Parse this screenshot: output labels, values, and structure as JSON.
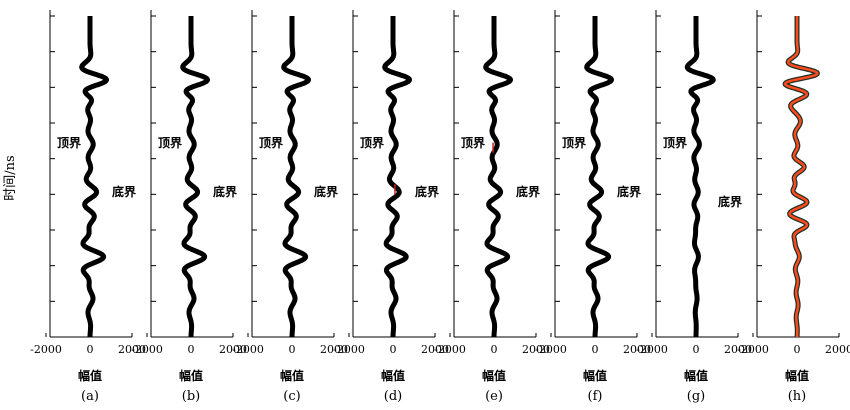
{
  "figure": {
    "ylabel": "时间/ns",
    "tick_labels": [
      "-2000",
      "0",
      "2000"
    ],
    "xlabel": "幅值",
    "top_label": "顶界",
    "bottom_label": "底界"
  },
  "chart_data": [
    {
      "type": "line",
      "panel": "(a)",
      "xlabel": "幅值",
      "xlim": [
        -2000,
        2000
      ],
      "yticks": 10,
      "annotations": [
        "顶界",
        "底界"
      ],
      "events": [
        {
          "y": 0.0,
          "amp": 0.0,
          "sigma": 0.06
        },
        {
          "y": 0.2,
          "amp": 1000,
          "sigma": 0.035
        },
        {
          "y": 0.25,
          "amp": 300,
          "sigma": 0.04
        },
        {
          "y": 0.4,
          "amp": 170,
          "sigma": 0.05
        },
        {
          "y": 0.55,
          "amp": 350,
          "sigma": 0.045
        },
        {
          "y": 0.62,
          "amp": 220,
          "sigma": 0.04
        },
        {
          "y": 0.75,
          "amp": 720,
          "sigma": 0.04
        },
        {
          "y": 0.88,
          "amp": 160,
          "sigma": 0.05
        }
      ],
      "wavelength": 0.095,
      "colors": [
        "#000000"
      ]
    },
    {
      "type": "line",
      "panel": "(b)",
      "xlabel": "幅值",
      "xlim": [
        -2000,
        2000
      ],
      "yticks": 10,
      "annotations": [
        "顶界",
        "底界"
      ],
      "events": [
        {
          "y": 0.2,
          "amp": 1000,
          "sigma": 0.035
        },
        {
          "y": 0.25,
          "amp": 300,
          "sigma": 0.04
        },
        {
          "y": 0.4,
          "amp": 170,
          "sigma": 0.05
        },
        {
          "y": 0.55,
          "amp": 350,
          "sigma": 0.045
        },
        {
          "y": 0.62,
          "amp": 220,
          "sigma": 0.04
        },
        {
          "y": 0.75,
          "amp": 720,
          "sigma": 0.04
        },
        {
          "y": 0.88,
          "amp": 160,
          "sigma": 0.05
        }
      ],
      "wavelength": 0.095,
      "colors": [
        "#000000"
      ]
    },
    {
      "type": "line",
      "panel": "(c)",
      "xlabel": "幅值",
      "xlim": [
        -2000,
        2000
      ],
      "yticks": 10,
      "annotations": [
        "顶界",
        "底界"
      ],
      "events": [
        {
          "y": 0.2,
          "amp": 1000,
          "sigma": 0.035
        },
        {
          "y": 0.25,
          "amp": 300,
          "sigma": 0.04
        },
        {
          "y": 0.4,
          "amp": 170,
          "sigma": 0.05
        },
        {
          "y": 0.55,
          "amp": 350,
          "sigma": 0.045
        },
        {
          "y": 0.62,
          "amp": 220,
          "sigma": 0.04
        },
        {
          "y": 0.75,
          "amp": 720,
          "sigma": 0.04
        },
        {
          "y": 0.88,
          "amp": 160,
          "sigma": 0.05
        }
      ],
      "wavelength": 0.095,
      "colors": [
        "#000000"
      ]
    },
    {
      "type": "line",
      "panel": "(d)",
      "xlabel": "幅值",
      "xlim": [
        -2000,
        2000
      ],
      "yticks": 10,
      "annotations": [
        "顶界",
        "底界"
      ],
      "events": [
        {
          "y": 0.2,
          "amp": 1000,
          "sigma": 0.035
        },
        {
          "y": 0.25,
          "amp": 300,
          "sigma": 0.04
        },
        {
          "y": 0.4,
          "amp": 170,
          "sigma": 0.05
        },
        {
          "y": 0.55,
          "amp": 330,
          "sigma": 0.045
        },
        {
          "y": 0.62,
          "amp": 220,
          "sigma": 0.04
        },
        {
          "y": 0.75,
          "amp": 700,
          "sigma": 0.04
        },
        {
          "y": 0.88,
          "amp": 160,
          "sigma": 0.05
        }
      ],
      "wavelength": 0.095,
      "colors": [
        "#000000"
      ],
      "markers": [
        {
          "x": 100,
          "y": 0.54,
          "color": "#cc2222"
        }
      ]
    },
    {
      "type": "line",
      "panel": "(e)",
      "xlabel": "幅值",
      "xlim": [
        -2000,
        2000
      ],
      "yticks": 10,
      "annotations": [
        "顶界",
        "底界"
      ],
      "events": [
        {
          "y": 0.2,
          "amp": 1000,
          "sigma": 0.035
        },
        {
          "y": 0.25,
          "amp": 300,
          "sigma": 0.04
        },
        {
          "y": 0.4,
          "amp": 170,
          "sigma": 0.05
        },
        {
          "y": 0.55,
          "amp": 350,
          "sigma": 0.045
        },
        {
          "y": 0.62,
          "amp": 220,
          "sigma": 0.04
        },
        {
          "y": 0.75,
          "amp": 720,
          "sigma": 0.04
        },
        {
          "y": 0.88,
          "amp": 160,
          "sigma": 0.05
        }
      ],
      "wavelength": 0.095,
      "colors": [
        "#000000"
      ],
      "markers": [
        {
          "x": -50,
          "y": 0.41,
          "color": "#cc2222"
        }
      ]
    },
    {
      "type": "line",
      "panel": "(f)",
      "xlabel": "幅值",
      "xlim": [
        -2000,
        2000
      ],
      "yticks": 10,
      "annotations": [
        "顶界",
        "底界"
      ],
      "events": [
        {
          "y": 0.2,
          "amp": 1000,
          "sigma": 0.035
        },
        {
          "y": 0.25,
          "amp": 300,
          "sigma": 0.04
        },
        {
          "y": 0.4,
          "amp": 170,
          "sigma": 0.05
        },
        {
          "y": 0.55,
          "amp": 350,
          "sigma": 0.045
        },
        {
          "y": 0.62,
          "amp": 220,
          "sigma": 0.04
        },
        {
          "y": 0.75,
          "amp": 720,
          "sigma": 0.04
        },
        {
          "y": 0.88,
          "amp": 160,
          "sigma": 0.05
        }
      ],
      "wavelength": 0.095,
      "colors": [
        "#000000"
      ]
    },
    {
      "type": "line",
      "panel": "(g)",
      "xlabel": "幅值",
      "xlim": [
        -2000,
        2000
      ],
      "yticks": 10,
      "annotations": [
        "顶界",
        "底界"
      ],
      "events": [
        {
          "y": 0.2,
          "amp": 1050,
          "sigma": 0.035
        },
        {
          "y": 0.25,
          "amp": 320,
          "sigma": 0.04
        },
        {
          "y": 0.4,
          "amp": 180,
          "sigma": 0.05
        },
        {
          "y": 0.55,
          "amp": 120,
          "sigma": 0.05
        },
        {
          "y": 0.62,
          "amp": 90,
          "sigma": 0.04
        },
        {
          "y": 0.75,
          "amp": 130,
          "sigma": 0.05
        },
        {
          "y": 0.88,
          "amp": 60,
          "sigma": 0.05
        }
      ],
      "wavelength": 0.095,
      "colors": [
        "#000000"
      ]
    },
    {
      "type": "line",
      "panel": "(h)",
      "xlabel": "幅值",
      "xlim": [
        -2000,
        2000
      ],
      "yticks": 10,
      "annotations": [],
      "events": [
        {
          "y": 0.18,
          "amp": 1100,
          "sigma": 0.03
        },
        {
          "y": 0.24,
          "amp": 500,
          "sigma": 0.035
        },
        {
          "y": 0.33,
          "amp": 160,
          "sigma": 0.05
        },
        {
          "y": 0.47,
          "amp": 380,
          "sigma": 0.03
        },
        {
          "y": 0.58,
          "amp": 520,
          "sigma": 0.03
        },
        {
          "y": 0.65,
          "amp": 500,
          "sigma": 0.025
        },
        {
          "y": 0.75,
          "amp": 120,
          "sigma": 0.05
        },
        {
          "y": 0.9,
          "amp": 60,
          "sigma": 0.05
        }
      ],
      "wavelength": 0.085,
      "colors": [
        "#1f2f22",
        "#ff4b1e"
      ]
    }
  ]
}
